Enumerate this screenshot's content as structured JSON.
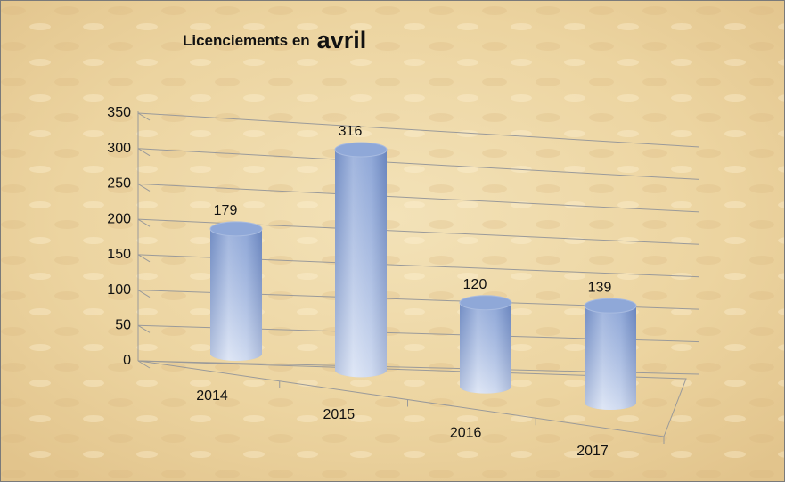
{
  "chart_data": {
    "type": "bar3d-cylinder",
    "title": [
      "Licenciements en",
      "avril"
    ],
    "categories": [
      "2014",
      "2015",
      "2016",
      "2017"
    ],
    "values": [
      179,
      316,
      120,
      139
    ],
    "color": "#8fa8d8",
    "ylim": [
      0,
      350
    ],
    "yticks": [
      0,
      50,
      100,
      150,
      200,
      250,
      300,
      350
    ],
    "grid": true
  }
}
